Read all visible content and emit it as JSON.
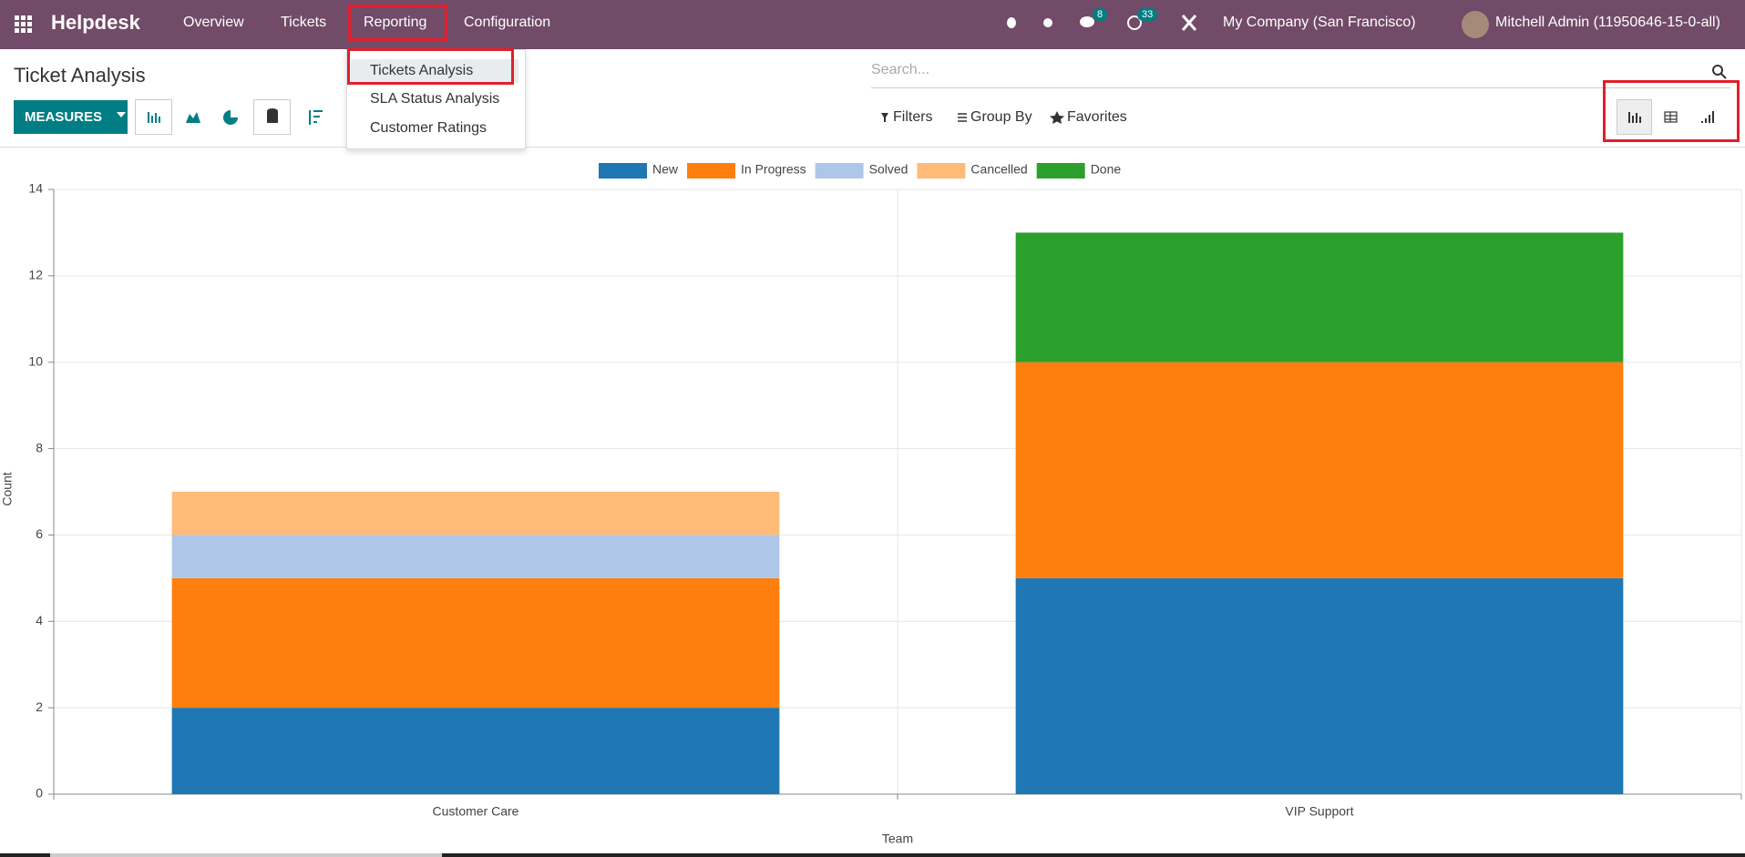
{
  "nav": {
    "app": "Helpdesk",
    "menu": [
      "Overview",
      "Tickets",
      "Reporting",
      "Configuration"
    ],
    "badges": [
      "8",
      "33"
    ],
    "company": "My Company (San Francisco)",
    "user": "Mitchell Admin (11950646-15-0-all)"
  },
  "dropdown": [
    "Tickets Analysis",
    "SLA Status Analysis",
    "Customer Ratings"
  ],
  "control_panel": {
    "title": "Ticket Analysis",
    "measures": "MEASURES",
    "search": "Search...",
    "filters": "Filters",
    "group_by": "Group By",
    "favorites": "Favorites"
  },
  "chart_data": {
    "type": "bar",
    "stacked": true,
    "categories": [
      "Customer Care",
      "VIP Support"
    ],
    "x_label": "Team",
    "y_label": "Count",
    "series": [
      {
        "name": "New",
        "color": "#1f77b4",
        "values": [
          2,
          5
        ]
      },
      {
        "name": "In Progress",
        "color": "#ff7f0e",
        "values": [
          3,
          5
        ]
      },
      {
        "name": "Solved",
        "color": "#aec7e8",
        "values": [
          1,
          0
        ]
      },
      {
        "name": "Cancelled",
        "color": "#ffbb78",
        "values": [
          1,
          0
        ]
      },
      {
        "name": "Done",
        "color": "#2ca02c",
        "values": [
          0,
          3
        ]
      }
    ],
    "ylim": [
      0,
      14
    ],
    "yticks": [
      0,
      2,
      4,
      6,
      8,
      10,
      12,
      14
    ],
    "grid": true,
    "legend": "top"
  }
}
